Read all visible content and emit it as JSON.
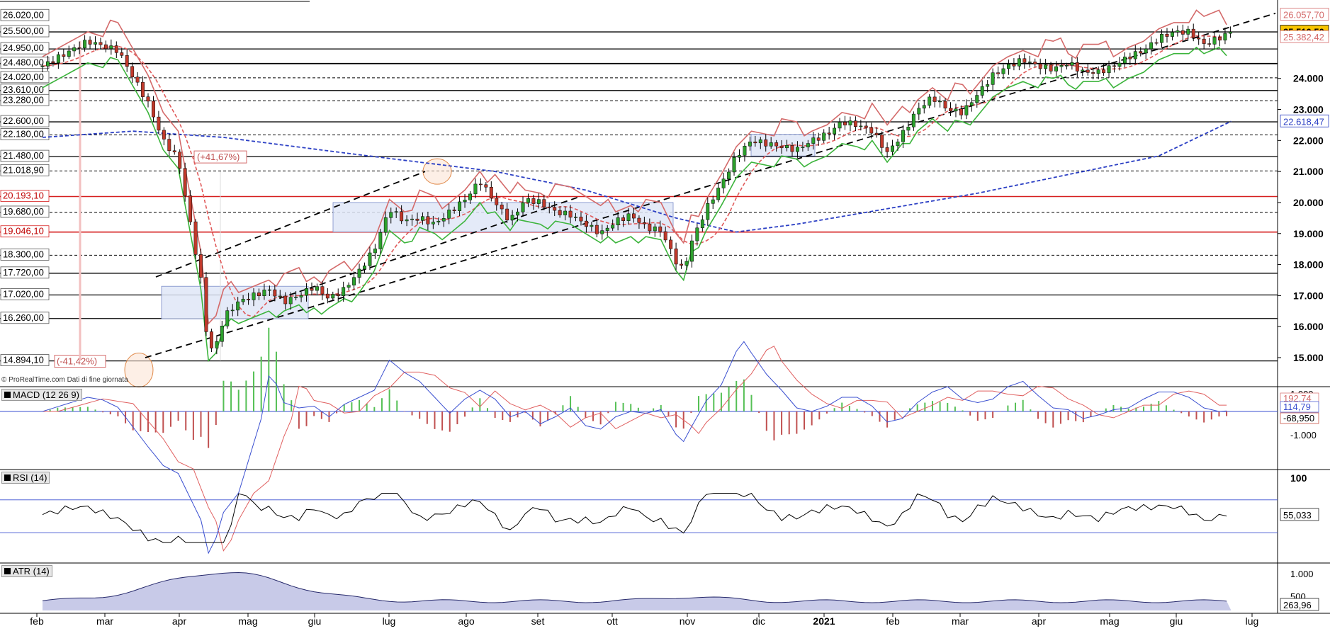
{
  "watermark": "© ProRealTime.com  Dati di fine giornata",
  "colors": {
    "up": "#2ca02c",
    "down": "#c0392b",
    "supertrend_red": "#d46a6a",
    "supertrend_green": "#3cb43c",
    "ma_fast": "#e05a5a",
    "ma_slow": "#2b3fc4",
    "trend": "#000000",
    "box_fill": "#dfe6f7",
    "macd_line": "#3a4fd0",
    "signal_line": "#e06060",
    "hist_up": "#55c055",
    "hist_down": "#c05050",
    "atr_fill": "#c8cae8",
    "atr_line": "#26296b",
    "highlight": "#f7c500"
  },
  "price_panel": {
    "left_levels": [
      {
        "label": "26.020,00",
        "value": 26020,
        "style": "none"
      },
      {
        "label": "25.500,00",
        "value": 25500,
        "style": "solid"
      },
      {
        "label": "24.950,00",
        "value": 24950,
        "style": "solid"
      },
      {
        "label": "24.480,00",
        "value": 24480,
        "style": "solid-bold"
      },
      {
        "label": "24.020,00",
        "value": 24020,
        "style": "dash"
      },
      {
        "label": "23.610,00",
        "value": 23610,
        "style": "solid"
      },
      {
        "label": "23.280,00",
        "value": 23280,
        "style": "dash"
      },
      {
        "label": "22.600,00",
        "value": 22600,
        "style": "solid"
      },
      {
        "label": "22.180,00",
        "value": 22180,
        "style": "dash"
      },
      {
        "label": "21.480,00",
        "value": 21480,
        "style": "solid"
      },
      {
        "label": "21.018,90",
        "value": 21018.9,
        "style": "dash"
      },
      {
        "label": "20.193,10",
        "value": 20193.1,
        "style": "red"
      },
      {
        "label": "19.680,00",
        "value": 19680,
        "style": "dash"
      },
      {
        "label": "19.046,10",
        "value": 19046.1,
        "style": "red"
      },
      {
        "label": "18.300,00",
        "value": 18300,
        "style": "dash"
      },
      {
        "label": "17.720,00",
        "value": 17720,
        "style": "solid"
      },
      {
        "label": "17.020,00",
        "value": 17020,
        "style": "solid"
      },
      {
        "label": "16.260,00",
        "value": 16260,
        "style": "solid"
      },
      {
        "label": "14.894,10",
        "value": 14894.1,
        "style": "solid"
      }
    ],
    "right_axis_ticks": [
      "15.000",
      "16.000",
      "17.000",
      "18.000",
      "19.000",
      "20.000",
      "21.000",
      "22.000",
      "23.000",
      "24.000"
    ],
    "right_labels": [
      {
        "label": "26.057,70",
        "value": 26057.7,
        "kind": "red"
      },
      {
        "label": "25.510,50",
        "value": 25510.5,
        "kind": "highlight"
      },
      {
        "label": "25.382,42",
        "value": 25382.42,
        "kind": "red"
      },
      {
        "label": "22.618,47",
        "value": 22618.47,
        "kind": "blue"
      }
    ],
    "annotations": [
      "(+41,67%)",
      "(-41,42%)"
    ]
  },
  "macd_panel": {
    "title": "MACD (12 26 9)",
    "ticks": [
      "1.000",
      "-1.000"
    ],
    "right_labels": [
      "192,74",
      "114,79",
      "-68,950"
    ]
  },
  "rsi_panel": {
    "title": "RSI (14)",
    "ticks": [
      "100"
    ],
    "right_label": "55,033"
  },
  "atr_panel": {
    "title": "ATR (14)",
    "ticks": [
      "1.000",
      "500"
    ],
    "right_label": "263,96"
  },
  "x_axis": [
    "feb",
    "mar",
    "apr",
    "mag",
    "giu",
    "lug",
    "ago",
    "set",
    "ott",
    "nov",
    "dic",
    "2021",
    "feb",
    "mar",
    "apr",
    "mag",
    "giu",
    "lug"
  ],
  "chart_data": {
    "type": "line",
    "title": "",
    "xlabel": "",
    "ylabel": "",
    "ylim": [
      14200,
      26300
    ],
    "x": [
      "feb",
      "mar",
      "apr",
      "mag",
      "giu",
      "lug",
      "ago",
      "set",
      "ott",
      "nov",
      "dic",
      "2021",
      "feb",
      "mar",
      "apr",
      "mag",
      "giu",
      "lug"
    ],
    "series": [
      {
        "name": "",
        "points": [
          [
            0,
            24400
          ],
          [
            3,
            25200
          ],
          [
            5,
            24900
          ],
          [
            7,
            23200
          ],
          [
            8,
            22000
          ],
          [
            9,
            21400
          ],
          [
            10,
            18800
          ],
          [
            10.5,
            17500
          ],
          [
            11,
            15200
          ],
          [
            11.6,
            15500
          ],
          [
            12,
            16300
          ],
          [
            13,
            16800
          ],
          [
            14,
            17000
          ],
          [
            15,
            17200
          ],
          [
            16,
            16800
          ],
          [
            17,
            17000
          ],
          [
            18,
            17300
          ],
          [
            19,
            16900
          ],
          [
            20,
            17200
          ],
          [
            21,
            17800
          ],
          [
            22,
            18500
          ],
          [
            23,
            19800
          ],
          [
            24,
            19400
          ],
          [
            25,
            19500
          ],
          [
            26,
            19300
          ],
          [
            27,
            19700
          ],
          [
            28,
            20100
          ],
          [
            29,
            20700
          ],
          [
            30,
            20000
          ],
          [
            31,
            19400
          ],
          [
            32,
            20100
          ],
          [
            33,
            20000
          ],
          [
            34,
            19700
          ],
          [
            35,
            19600
          ],
          [
            36,
            19300
          ],
          [
            37,
            19000
          ],
          [
            38,
            19400
          ],
          [
            39,
            19600
          ],
          [
            40,
            19200
          ],
          [
            41,
            19100
          ],
          [
            42,
            18100
          ],
          [
            42.5,
            17800
          ],
          [
            43,
            18700
          ],
          [
            44,
            19800
          ],
          [
            45,
            20600
          ],
          [
            46,
            21500
          ],
          [
            47,
            22000
          ],
          [
            48,
            21900
          ],
          [
            49,
            21800
          ],
          [
            50,
            21700
          ],
          [
            51,
            22000
          ],
          [
            52,
            22200
          ],
          [
            53,
            22600
          ],
          [
            54,
            22500
          ],
          [
            55,
            22300
          ],
          [
            56,
            21600
          ],
          [
            57,
            22200
          ],
          [
            58,
            23000
          ],
          [
            59,
            23400
          ],
          [
            60,
            23000
          ],
          [
            61,
            22900
          ],
          [
            62,
            23500
          ],
          [
            63,
            24100
          ],
          [
            64,
            24400
          ],
          [
            65,
            24600
          ],
          [
            66,
            24400
          ],
          [
            67,
            24300
          ],
          [
            68,
            24500
          ],
          [
            69,
            24200
          ],
          [
            70,
            24200
          ],
          [
            71,
            24400
          ],
          [
            72,
            24700
          ],
          [
            73,
            24900
          ],
          [
            74,
            25300
          ],
          [
            75,
            25500
          ],
          [
            76,
            25500
          ],
          [
            77,
            25100
          ],
          [
            78,
            25300
          ],
          [
            78.8,
            25510.5
          ]
        ]
      },
      {
        "name": "",
        "points": [
          [
            0,
            22100
          ],
          [
            6,
            22300
          ],
          [
            12,
            22100
          ],
          [
            20,
            21600
          ],
          [
            30,
            21000
          ],
          [
            36,
            20400
          ],
          [
            42,
            19500
          ],
          [
            46,
            19050
          ],
          [
            50,
            19300
          ],
          [
            56,
            19800
          ],
          [
            62,
            20300
          ],
          [
            68,
            20900
          ],
          [
            74,
            21500
          ],
          [
            78.8,
            22618.47
          ]
        ]
      }
    ]
  }
}
